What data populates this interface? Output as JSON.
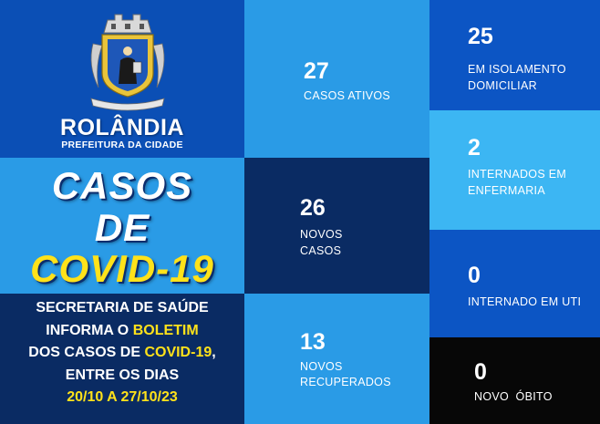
{
  "brand": {
    "name": "ROLÂNDIA",
    "subtitle": "PREFEITURA DA CIDADE"
  },
  "title": {
    "line1": "CASOS",
    "line2": "DE",
    "line3": "COVID-19"
  },
  "info": {
    "line1": "SECRETARIA DE SAÚDE",
    "line2_prefix": "INFORMA O ",
    "line2_highlight": "BOLETIM",
    "line3_prefix": "DOS CASOS DE ",
    "line3_highlight": "COVID-19",
    "line3_suffix": ",",
    "line4": "ENTRE OS DIAS",
    "dates": "20/10 A 27/10/23"
  },
  "stats": {
    "ativos": {
      "value": "27",
      "line1": "CASOS ATIVOS"
    },
    "novos": {
      "value": "26",
      "line1": "NOVOS",
      "line2": "CASOS"
    },
    "recuperados": {
      "value": "13",
      "line1": "NOVOS",
      "line2": "RECUPERADOS"
    },
    "isolamento": {
      "value": "25",
      "line1": "EM ISOLAMENTO",
      "line2": "DOMICILIAR"
    },
    "enfermaria": {
      "value": "2",
      "line1": "INTERNADOS EM",
      "line2": "ENFERMARIA"
    },
    "uti": {
      "value": "0",
      "line1": "INTERNADO EM UTI"
    },
    "obito": {
      "value": "0",
      "line1": "NOVO  ÓBITO"
    }
  },
  "colors": {
    "dark_blue": "#0b4fb5",
    "light_blue": "#2a9be6",
    "navy": "#0a2b63",
    "royal_blue": "#0c55c4",
    "sky": "#3cb6f3",
    "black": "#070707",
    "yellow_text": "#ffe21a"
  }
}
